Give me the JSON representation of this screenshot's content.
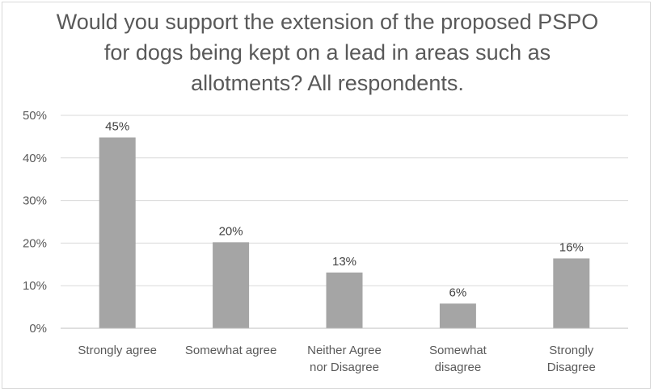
{
  "chart_data": {
    "type": "bar",
    "title": "Would you support the extension of the proposed PSPO for dogs being kept on a lead in areas such as allotments? All respondents.",
    "categories": [
      [
        "Strongly agree"
      ],
      [
        "Somewhat agree"
      ],
      [
        "Neither Agree",
        "nor Disagree"
      ],
      [
        "Somewhat",
        "disagree"
      ],
      [
        "Strongly",
        "Disagree"
      ]
    ],
    "values": [
      45,
      20,
      13,
      6,
      16
    ],
    "data_labels": [
      "45%",
      "20%",
      "13%",
      "6%",
      "16%"
    ],
    "plotted_values": [
      44.8,
      20.2,
      13.1,
      5.8,
      16.4
    ],
    "ylim": [
      0,
      50
    ],
    "yticks": [
      0,
      10,
      20,
      30,
      40,
      50
    ],
    "ytick_labels": [
      "0%",
      "10%",
      "20%",
      "30%",
      "40%",
      "50%"
    ],
    "xlabel": "",
    "ylabel": "",
    "grid": true,
    "legend": "none",
    "colors": {
      "bar": "#a5a5a5",
      "grid": "#d9d9d9",
      "axis": "#bfbfbf",
      "text": "#595959"
    }
  }
}
